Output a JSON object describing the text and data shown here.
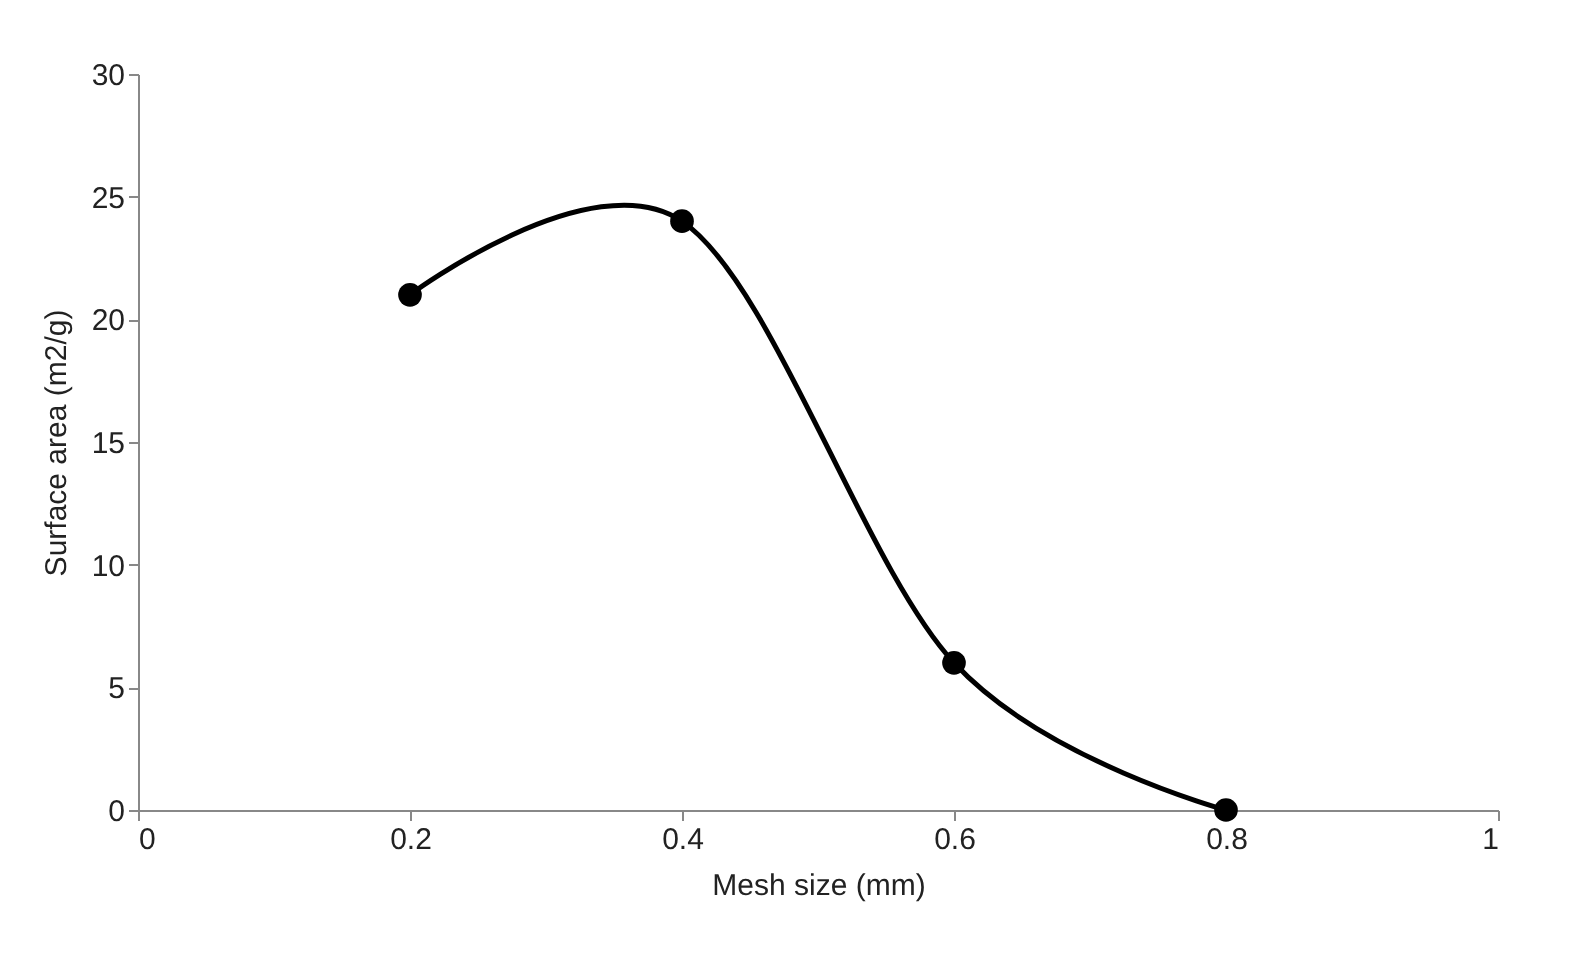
{
  "chart_data": {
    "type": "line",
    "xlabel": "Mesh size (mm)",
    "ylabel": "Surface area (m2/g)",
    "x": [
      0.2,
      0.4,
      0.6,
      0.8
    ],
    "values": [
      21,
      24,
      6,
      0
    ],
    "color": "#000000",
    "marker": "circle",
    "line_style": "solid",
    "xlim": [
      0,
      1
    ],
    "xticks": [
      0,
      0.2,
      0.4,
      0.6,
      0.8,
      1
    ],
    "ylim": [
      0,
      30
    ],
    "yticks": [
      0,
      5,
      10,
      15,
      20,
      25,
      30
    ],
    "grid": false
  }
}
